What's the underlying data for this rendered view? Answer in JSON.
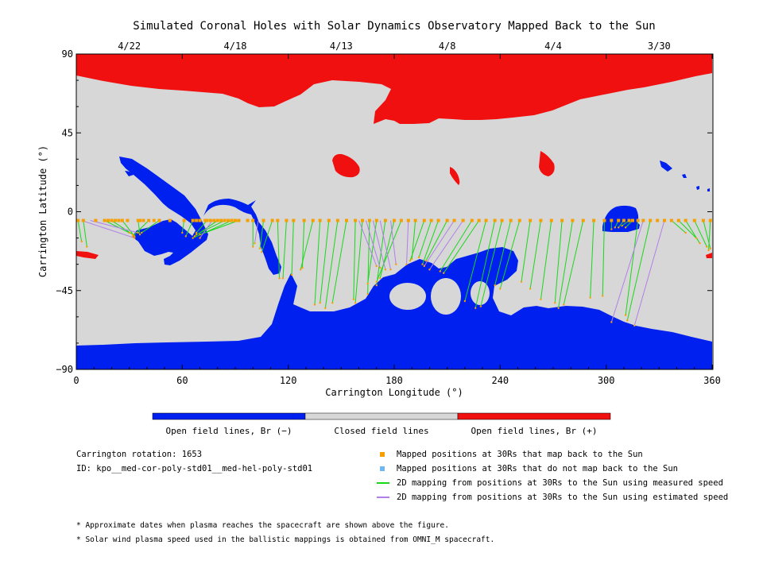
{
  "chart_data": {
    "type": "map",
    "title": "Simulated Coronal Holes with Solar Dynamics Observatory Mapped Back to the Sun",
    "xlabel": "Carrington Longitude (°)",
    "ylabel": "Carrington Latitude (°)",
    "xlim": [
      0,
      360
    ],
    "ylim": [
      -90,
      90
    ],
    "x_ticks": [
      0,
      60,
      120,
      180,
      240,
      300,
      360
    ],
    "x_tick_labels": [
      "0",
      "60",
      "120",
      "180",
      "240",
      "300",
      "360"
    ],
    "y_ticks": [
      90,
      45,
      0,
      -45,
      -90
    ],
    "y_tick_labels": [
      "90",
      "45",
      "0",
      "−45",
      "−90"
    ],
    "top_dates": [
      {
        "label": "4/22",
        "lon": 30
      },
      {
        "label": "4/18",
        "lon": 90
      },
      {
        "label": "4/13",
        "lon": 150
      },
      {
        "label": "4/8",
        "lon": 210
      },
      {
        "label": "4/4",
        "lon": 270
      },
      {
        "label": "3/30",
        "lon": 330
      }
    ],
    "colors": {
      "open_negative": "#0020f0",
      "closed": "#d7d7d7",
      "open_positive": "#f01010",
      "mapped": "#f5a000",
      "unmapped": "#70b8f0",
      "measured": "#18d818",
      "estimated": "#b080e8"
    },
    "spacecraft_latitude": -5,
    "mapped_longitudes": [
      1,
      4,
      11,
      16,
      18,
      20,
      22,
      24,
      26,
      29,
      35,
      36,
      38,
      41,
      44,
      47,
      53,
      61,
      66,
      68,
      70,
      73,
      74,
      76,
      78,
      80,
      82,
      84,
      86,
      88,
      90,
      92,
      97,
      100,
      106,
      111,
      114,
      119,
      123,
      129,
      134,
      138,
      143,
      148,
      153,
      158,
      162,
      166,
      170,
      175,
      180,
      184,
      188,
      192,
      197,
      201,
      205,
      210,
      214,
      219,
      224,
      228,
      232,
      237,
      241,
      246,
      251,
      257,
      263,
      269,
      275,
      281,
      287,
      293,
      299,
      303,
      307,
      310,
      313,
      315,
      318,
      321,
      325,
      329,
      333,
      337,
      341,
      345,
      350,
      355,
      359
    ],
    "mapping_lines_measured": [
      {
        "lon": 1,
        "foot": [
          3,
          -17
        ]
      },
      {
        "lon": 4,
        "foot": [
          6,
          -20
        ]
      },
      {
        "lon": 16,
        "foot": [
          30,
          -12
        ]
      },
      {
        "lon": 20,
        "foot": [
          32,
          -13
        ]
      },
      {
        "lon": 26,
        "foot": [
          33,
          -14
        ]
      },
      {
        "lon": 35,
        "foot": [
          36,
          -13
        ]
      },
      {
        "lon": 41,
        "foot": [
          32,
          -14
        ]
      },
      {
        "lon": 47,
        "foot": [
          37,
          -12
        ]
      },
      {
        "lon": 61,
        "foot": [
          60,
          -12
        ]
      },
      {
        "lon": 66,
        "foot": [
          62,
          -14
        ]
      },
      {
        "lon": 74,
        "foot": [
          68,
          -12
        ]
      },
      {
        "lon": 80,
        "foot": [
          67,
          -14
        ]
      },
      {
        "lon": 84,
        "foot": [
          68,
          -13
        ]
      },
      {
        "lon": 88,
        "foot": [
          66,
          -15
        ]
      },
      {
        "lon": 92,
        "foot": [
          70,
          -13
        ]
      },
      {
        "lon": 100,
        "foot": [
          100,
          -20
        ]
      },
      {
        "lon": 106,
        "foot": [
          104,
          -21
        ]
      },
      {
        "lon": 111,
        "foot": [
          105,
          -23
        ]
      },
      {
        "lon": 114,
        "foot": [
          115,
          -38
        ]
      },
      {
        "lon": 119,
        "foot": [
          117,
          -38
        ]
      },
      {
        "lon": 123,
        "foot": [
          122,
          -36
        ]
      },
      {
        "lon": 129,
        "foot": [
          128,
          -32
        ]
      },
      {
        "lon": 134,
        "foot": [
          127,
          -33
        ]
      },
      {
        "lon": 138,
        "foot": [
          135,
          -53
        ]
      },
      {
        "lon": 143,
        "foot": [
          138,
          -52
        ]
      },
      {
        "lon": 148,
        "foot": [
          141,
          -55
        ]
      },
      {
        "lon": 153,
        "foot": [
          145,
          -52
        ]
      },
      {
        "lon": 158,
        "foot": [
          157,
          -50
        ]
      },
      {
        "lon": 162,
        "foot": [
          158,
          -52
        ]
      },
      {
        "lon": 166,
        "foot": [
          165,
          -47
        ]
      },
      {
        "lon": 170,
        "foot": [
          165,
          -41
        ]
      },
      {
        "lon": 175,
        "foot": [
          170,
          -42
        ]
      },
      {
        "lon": 180,
        "foot": [
          172,
          -38
        ]
      },
      {
        "lon": 184,
        "foot": [
          170,
          -40
        ]
      },
      {
        "lon": 192,
        "foot": [
          190,
          -27
        ]
      },
      {
        "lon": 197,
        "foot": [
          189,
          -28
        ]
      },
      {
        "lon": 201,
        "foot": [
          194,
          -26
        ]
      },
      {
        "lon": 205,
        "foot": [
          196,
          -30
        ]
      },
      {
        "lon": 210,
        "foot": [
          198,
          -28
        ]
      },
      {
        "lon": 224,
        "foot": [
          206,
          -34
        ]
      },
      {
        "lon": 228,
        "foot": [
          208,
          -35
        ]
      },
      {
        "lon": 232,
        "foot": [
          220,
          -51
        ]
      },
      {
        "lon": 237,
        "foot": [
          226,
          -55
        ]
      },
      {
        "lon": 241,
        "foot": [
          229,
          -54
        ]
      },
      {
        "lon": 246,
        "foot": [
          237,
          -42
        ]
      },
      {
        "lon": 251,
        "foot": [
          240,
          -44
        ]
      },
      {
        "lon": 257,
        "foot": [
          252,
          -40
        ]
      },
      {
        "lon": 263,
        "foot": [
          257,
          -44
        ]
      },
      {
        "lon": 269,
        "foot": [
          263,
          -50
        ]
      },
      {
        "lon": 275,
        "foot": [
          271,
          -52
        ]
      },
      {
        "lon": 281,
        "foot": [
          273,
          -55
        ]
      },
      {
        "lon": 287,
        "foot": [
          276,
          -53
        ]
      },
      {
        "lon": 293,
        "foot": [
          291,
          -49
        ]
      },
      {
        "lon": 299,
        "foot": [
          298,
          -48
        ]
      },
      {
        "lon": 303,
        "foot": [
          303,
          -10
        ]
      },
      {
        "lon": 307,
        "foot": [
          305,
          -9
        ]
      },
      {
        "lon": 310,
        "foot": [
          307,
          -9
        ]
      },
      {
        "lon": 313,
        "foot": [
          309,
          -8
        ]
      },
      {
        "lon": 315,
        "foot": [
          311,
          -9
        ]
      },
      {
        "lon": 318,
        "foot": [
          311,
          -59
        ]
      },
      {
        "lon": 325,
        "foot": [
          312,
          -62
        ]
      },
      {
        "lon": 337,
        "foot": [
          345,
          -12
        ]
      },
      {
        "lon": 341,
        "foot": [
          351,
          -15
        ]
      },
      {
        "lon": 345,
        "foot": [
          353,
          -18
        ]
      },
      {
        "lon": 350,
        "foot": [
          357,
          -20
        ]
      },
      {
        "lon": 355,
        "foot": [
          359,
          -21
        ]
      },
      {
        "lon": 359,
        "foot": [
          358,
          -22
        ]
      }
    ],
    "mapping_lines_estimated": [
      {
        "lon": 3,
        "foot": [
          33,
          -15
        ]
      },
      {
        "lon": 8,
        "foot": [
          35,
          -12
        ]
      },
      {
        "lon": 77,
        "foot": [
          70,
          -15
        ]
      },
      {
        "lon": 103,
        "foot": [
          101,
          -18
        ]
      },
      {
        "lon": 160,
        "foot": [
          170,
          -31
        ]
      },
      {
        "lon": 164,
        "foot": [
          172,
          -32
        ]
      },
      {
        "lon": 168,
        "foot": [
          175,
          -33
        ]
      },
      {
        "lon": 172,
        "foot": [
          178,
          -33
        ]
      },
      {
        "lon": 178,
        "foot": [
          181,
          -30
        ]
      },
      {
        "lon": 188,
        "foot": [
          187,
          -30
        ]
      },
      {
        "lon": 214,
        "foot": [
          197,
          -31
        ]
      },
      {
        "lon": 219,
        "foot": [
          200,
          -33
        ]
      },
      {
        "lon": 321,
        "foot": [
          303,
          -63
        ]
      },
      {
        "lon": 333,
        "foot": [
          316,
          -65
        ]
      }
    ],
    "colorbar_labels": [
      "Open field lines, Br (−)",
      "Closed field lines",
      "Open field lines, Br (+)"
    ],
    "info": {
      "rotation": "Carrington rotation: 1653",
      "id": "ID: kpo__med-cor-poly-std01__med-hel-poly-std01"
    },
    "legend": [
      {
        "label": "Mapped positions at 30Rs that map back to the Sun",
        "marker": "square",
        "color": "#f5a000"
      },
      {
        "label": "Mapped positions at 30Rs that do not map back to the Sun",
        "marker": "square",
        "color": "#70b8f0"
      },
      {
        "label": "2D mapping from positions at 30Rs to the Sun using measured speed",
        "marker": "line",
        "color": "#18d818"
      },
      {
        "label": "2D mapping from positions at 30Rs to the Sun using estimated speed",
        "marker": "line",
        "color": "#b080e8"
      }
    ],
    "notes": [
      "* Approximate dates when plasma reaches the spacecraft are shown above the figure.",
      "* Solar wind plasma speed used in the ballistic mappings is obtained from OMNI_M spacecraft."
    ]
  }
}
